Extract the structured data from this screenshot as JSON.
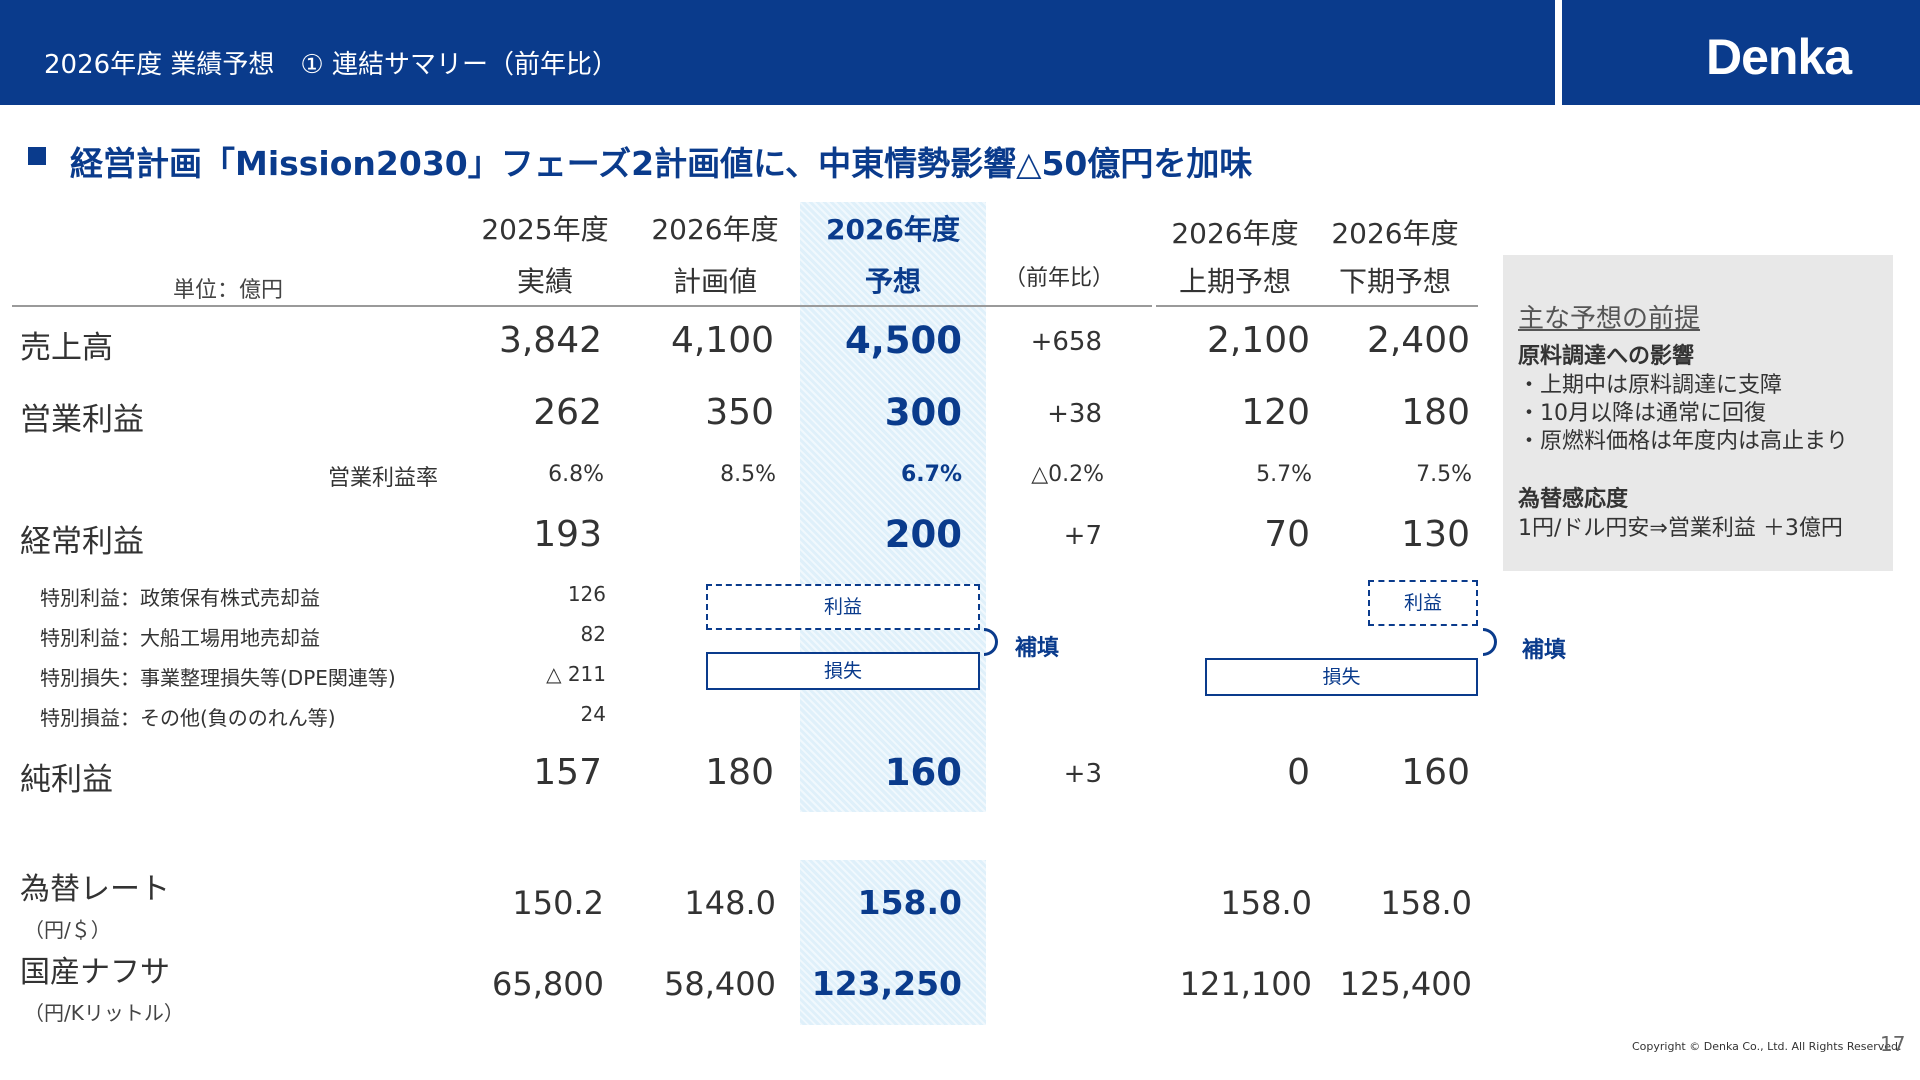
{
  "header": {
    "title": "2026年度 業績予想　① 連結サマリー（前年比）",
    "logo": "Denka"
  },
  "headline": "経営計画「Mission2030」フェーズ2計画値に、中東情勢影響△50億円を加味",
  "unit_label": "単位：億円",
  "columns": [
    {
      "line1": "2025年度",
      "line2": "実績"
    },
    {
      "line1": "2026年度",
      "line2": "計画値"
    },
    {
      "line1": "2026年度",
      "line2": "予想"
    },
    {
      "line1": "",
      "line2": "（前年比）"
    },
    {
      "line1": "2026年度",
      "line2": "上期予想"
    },
    {
      "line1": "2026年度",
      "line2": "下期予想"
    }
  ],
  "rows": {
    "sales": {
      "label": "売上高",
      "values": [
        "3,842",
        "4,100",
        "4,500",
        "+658",
        "2,100",
        "2,400"
      ]
    },
    "op_profit": {
      "label": "営業利益",
      "values": [
        "262",
        "350",
        "300",
        "+38",
        "120",
        "180"
      ]
    },
    "op_margin": {
      "label": "営業利益率",
      "values": [
        "6.8%",
        "8.5%",
        "6.7%",
        "△0.2%",
        "5.7%",
        "7.5%"
      ]
    },
    "ordinary": {
      "label": "経常利益",
      "values": [
        "193",
        "",
        "200",
        "+7",
        "70",
        "130"
      ]
    },
    "special": [
      {
        "label": "特別利益：政策保有株式売却益",
        "value": "126"
      },
      {
        "label": "特別利益：大船工場用地売却益",
        "value": "82"
      },
      {
        "label": "特別損失：事業整理損失等(DPE関連等)",
        "value": "△ 211"
      },
      {
        "label": "特別損益：その他(負ののれん等)",
        "value": "24"
      }
    ],
    "net": {
      "label": "純利益",
      "values": [
        "157",
        "180",
        "160",
        "+3",
        "0",
        "160"
      ]
    },
    "fx": {
      "label": "為替レート",
      "sub": "（円/＄）",
      "values": [
        "150.2",
        "148.0",
        "158.0",
        "",
        "158.0",
        "158.0"
      ]
    },
    "naphtha": {
      "label": "国産ナフサ",
      "sub": "（円/Kリットル）",
      "values": [
        "65,800",
        "58,400",
        "123,250",
        "",
        "121,100",
        "125,400"
      ]
    }
  },
  "boxes": {
    "profit": "利益",
    "loss": "損失",
    "compensate": "補填"
  },
  "assumptions": {
    "title": "主な予想の前提",
    "sec1_title": "原料調達への影響",
    "sec1_items": [
      "・上期中は原料調達に支障",
      "・10月以降は通常に回復",
      "・原燃料価格は年度内は高止まり"
    ],
    "sec2_title": "為替感応度",
    "sec2_items": [
      "1円/ドル円安⇒営業利益 ＋3億円"
    ]
  },
  "footer": {
    "copyright": "Copyright © Denka Co., Ltd. All Rights Reserved.",
    "page": "17"
  },
  "colors": {
    "brand": "#0a3b8c",
    "highlight": "#dff0fa",
    "panel": "#e8e8e8"
  }
}
